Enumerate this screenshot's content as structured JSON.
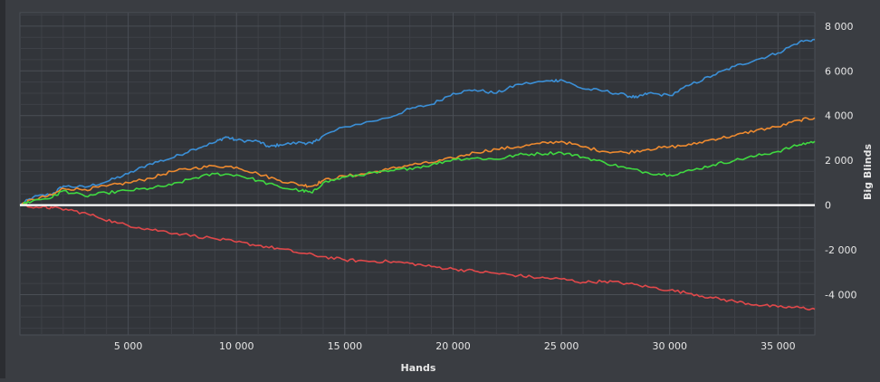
{
  "chart_data": {
    "type": "line",
    "title": "",
    "xlabel": "Hands",
    "ylabel": "Big Blinds",
    "xlim": [
      0,
      36700
    ],
    "ylim": [
      -5800,
      8600
    ],
    "x_ticks": [
      5000,
      10000,
      15000,
      20000,
      25000,
      30000,
      35000
    ],
    "x_tick_labels": [
      "5 000",
      "10 000",
      "15 000",
      "20 000",
      "25 000",
      "30 000",
      "35 000"
    ],
    "y_ticks": [
      -4000,
      -2000,
      0,
      2000,
      4000,
      6000,
      8000
    ],
    "y_tick_labels": [
      "-4 000",
      "-2 000",
      "0",
      "2 000",
      "4 000",
      "6 000",
      "8 000"
    ],
    "grid": true,
    "legend": "none",
    "colors": {
      "background": "#3a3d42",
      "plot_background": "#32353a",
      "grid_major": "#4a4e55",
      "grid_minor": "#3e4147",
      "zero_line": "#ffffff",
      "text": "#e6e6e6"
    },
    "series": [
      {
        "color": "#3b8fd6",
        "points": [
          [
            0,
            0
          ],
          [
            600,
            350
          ],
          [
            1500,
            500
          ],
          [
            2000,
            850
          ],
          [
            3000,
            800
          ],
          [
            4000,
            1050
          ],
          [
            5000,
            1400
          ],
          [
            6000,
            1850
          ],
          [
            7000,
            2100
          ],
          [
            8000,
            2500
          ],
          [
            9000,
            2800
          ],
          [
            9500,
            3050
          ],
          [
            10000,
            2900
          ],
          [
            11000,
            2850
          ],
          [
            11500,
            2600
          ],
          [
            12000,
            2700
          ],
          [
            13000,
            2800
          ],
          [
            13500,
            2750
          ],
          [
            14000,
            3100
          ],
          [
            15000,
            3500
          ],
          [
            17000,
            3900
          ],
          [
            18000,
            4300
          ],
          [
            19000,
            4500
          ],
          [
            20000,
            5000
          ],
          [
            21000,
            5150
          ],
          [
            22000,
            5000
          ],
          [
            23000,
            5400
          ],
          [
            24500,
            5550
          ],
          [
            25000,
            5600
          ],
          [
            26000,
            5200
          ],
          [
            27000,
            5100
          ],
          [
            28000,
            4900
          ],
          [
            28500,
            4800
          ],
          [
            29000,
            5000
          ],
          [
            30000,
            4900
          ],
          [
            31000,
            5400
          ],
          [
            32000,
            5800
          ],
          [
            33000,
            6200
          ],
          [
            34000,
            6500
          ],
          [
            35000,
            6800
          ],
          [
            36000,
            7300
          ],
          [
            36700,
            7400
          ]
        ]
      },
      {
        "color": "#ee8a2f",
        "points": [
          [
            0,
            0
          ],
          [
            600,
            250
          ],
          [
            1500,
            450
          ],
          [
            2000,
            750
          ],
          [
            3000,
            700
          ],
          [
            4000,
            850
          ],
          [
            5000,
            1000
          ],
          [
            6000,
            1200
          ],
          [
            7000,
            1500
          ],
          [
            8000,
            1650
          ],
          [
            9000,
            1750
          ],
          [
            10000,
            1700
          ],
          [
            11000,
            1400
          ],
          [
            12000,
            1100
          ],
          [
            13000,
            900
          ],
          [
            13500,
            850
          ],
          [
            14000,
            1100
          ],
          [
            15000,
            1300
          ],
          [
            16000,
            1400
          ],
          [
            17000,
            1600
          ],
          [
            18000,
            1800
          ],
          [
            19000,
            1900
          ],
          [
            20000,
            2100
          ],
          [
            21000,
            2350
          ],
          [
            22000,
            2500
          ],
          [
            23000,
            2600
          ],
          [
            24000,
            2750
          ],
          [
            25000,
            2850
          ],
          [
            26000,
            2600
          ],
          [
            27000,
            2400
          ],
          [
            28000,
            2350
          ],
          [
            29000,
            2500
          ],
          [
            30000,
            2600
          ],
          [
            31000,
            2700
          ],
          [
            32000,
            2950
          ],
          [
            33000,
            3100
          ],
          [
            34000,
            3350
          ],
          [
            35000,
            3500
          ],
          [
            36000,
            3800
          ],
          [
            36700,
            3900
          ]
        ]
      },
      {
        "color": "#3fd840",
        "points": [
          [
            0,
            0
          ],
          [
            600,
            200
          ],
          [
            1500,
            350
          ],
          [
            2000,
            650
          ],
          [
            3000,
            400
          ],
          [
            4000,
            550
          ],
          [
            5000,
            650
          ],
          [
            6000,
            750
          ],
          [
            7000,
            900
          ],
          [
            8000,
            1200
          ],
          [
            9000,
            1400
          ],
          [
            10000,
            1350
          ],
          [
            11000,
            1100
          ],
          [
            12000,
            800
          ],
          [
            13000,
            650
          ],
          [
            13500,
            550
          ],
          [
            14000,
            1000
          ],
          [
            15000,
            1250
          ],
          [
            16000,
            1400
          ],
          [
            17000,
            1500
          ],
          [
            18000,
            1650
          ],
          [
            19000,
            1800
          ],
          [
            20000,
            2050
          ],
          [
            21000,
            2100
          ],
          [
            22000,
            2050
          ],
          [
            23000,
            2250
          ],
          [
            24000,
            2300
          ],
          [
            25000,
            2350
          ],
          [
            26000,
            2150
          ],
          [
            27000,
            1900
          ],
          [
            28000,
            1650
          ],
          [
            29000,
            1450
          ],
          [
            30000,
            1350
          ],
          [
            31000,
            1550
          ],
          [
            32000,
            1800
          ],
          [
            33000,
            2000
          ],
          [
            34000,
            2200
          ],
          [
            35000,
            2400
          ],
          [
            36000,
            2700
          ],
          [
            36700,
            2850
          ]
        ]
      },
      {
        "color": "#e0484a",
        "points": [
          [
            0,
            0
          ],
          [
            1000,
            -100
          ],
          [
            1500,
            -120
          ],
          [
            2500,
            -250
          ],
          [
            3500,
            -500
          ],
          [
            4500,
            -800
          ],
          [
            5500,
            -1000
          ],
          [
            6500,
            -1150
          ],
          [
            7500,
            -1300
          ],
          [
            9000,
            -1500
          ],
          [
            10000,
            -1650
          ],
          [
            11000,
            -1800
          ],
          [
            12000,
            -1950
          ],
          [
            13000,
            -2150
          ],
          [
            14000,
            -2300
          ],
          [
            15000,
            -2450
          ],
          [
            16000,
            -2500
          ],
          [
            17000,
            -2520
          ],
          [
            18000,
            -2600
          ],
          [
            19000,
            -2750
          ],
          [
            20000,
            -2850
          ],
          [
            21000,
            -2950
          ],
          [
            22000,
            -3050
          ],
          [
            23000,
            -3150
          ],
          [
            24000,
            -3250
          ],
          [
            25000,
            -3300
          ],
          [
            26000,
            -3450
          ],
          [
            27000,
            -3400
          ],
          [
            28000,
            -3500
          ],
          [
            29000,
            -3650
          ],
          [
            30000,
            -3800
          ],
          [
            31000,
            -3950
          ],
          [
            32000,
            -4150
          ],
          [
            33000,
            -4300
          ],
          [
            34000,
            -4450
          ],
          [
            35000,
            -4550
          ],
          [
            36000,
            -4580
          ],
          [
            36700,
            -4650
          ]
        ]
      }
    ]
  }
}
